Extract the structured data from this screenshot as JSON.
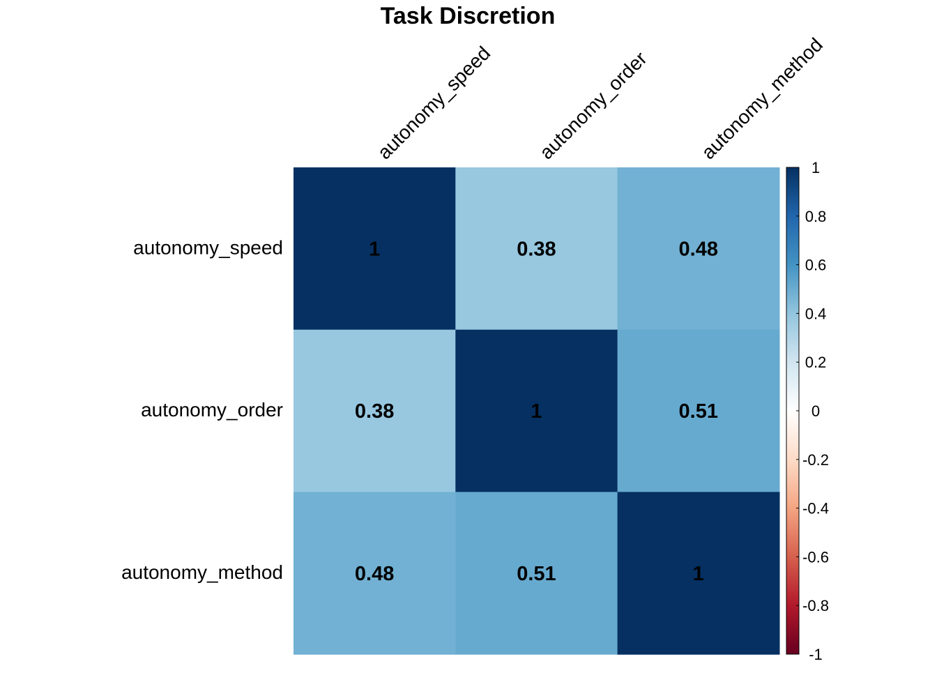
{
  "chart_data": {
    "type": "heatmap",
    "title": "Task Discretion",
    "rows": [
      "autonomy_speed",
      "autonomy_order",
      "autonomy_method"
    ],
    "columns": [
      "autonomy_speed",
      "autonomy_order",
      "autonomy_method"
    ],
    "values": [
      [
        1,
        0.38,
        0.48
      ],
      [
        0.38,
        1,
        0.51
      ],
      [
        0.48,
        0.51,
        1
      ]
    ],
    "cell_labels": [
      [
        "1",
        "0.38",
        "0.48"
      ],
      [
        "0.38",
        "1",
        "0.51"
      ],
      [
        "0.48",
        "0.51",
        "1"
      ]
    ],
    "colorbar": {
      "range": [
        -1,
        1
      ],
      "ticks": [
        1,
        0.8,
        0.6,
        0.4,
        0.2,
        0,
        -0.2,
        -0.4,
        -0.6,
        -0.8,
        -1
      ],
      "tick_labels": [
        "1",
        "0.8",
        "0.6",
        "0.4",
        "0.2",
        "0",
        "-0.2",
        "-0.4",
        "-0.6",
        "-0.8",
        "-1"
      ],
      "palette": [
        "#67001F",
        "#B2182B",
        "#D6604D",
        "#F4A582",
        "#FDDBC7",
        "#FFFFFF",
        "#D1E5F0",
        "#92C5DE",
        "#4393C3",
        "#2166AC",
        "#053061"
      ]
    },
    "grid": false,
    "legend_placement": "right"
  }
}
